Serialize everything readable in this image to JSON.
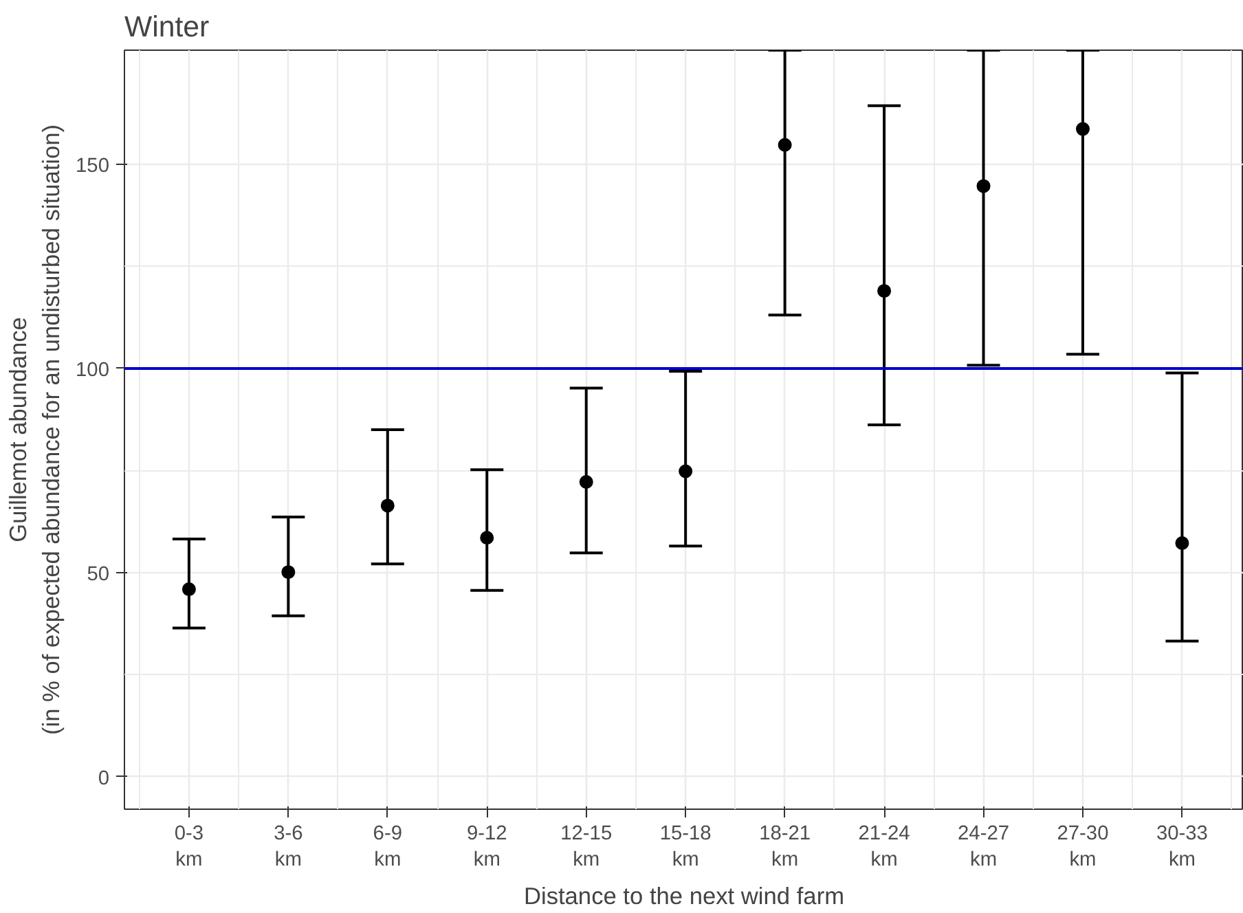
{
  "chart_data": {
    "type": "scatter",
    "title": "Winter",
    "xlabel": "Distance to the next wind farm",
    "ylabel": "Guillemot abundance\n(in % of expected abundance for an undisturbed situation)",
    "categories": [
      "0-3 km",
      "3-6 km",
      "6-9 km",
      "9-12 km",
      "12-15 km",
      "15-18 km",
      "18-21 km",
      "21-24 km",
      "24-27 km",
      "27-30 km",
      "30-33 km"
    ],
    "series": [
      {
        "color": "#000000",
        "values": [
          45.9,
          50.1,
          66.4,
          58.5,
          72.2,
          74.8,
          154.8,
          119.0,
          144.7,
          158.7,
          57.2
        ],
        "errors": [
          [
            36.4,
            58.2
          ],
          [
            39.4,
            63.6
          ],
          [
            52.1,
            85.0
          ],
          [
            45.6,
            75.2
          ],
          [
            54.8,
            95.2
          ],
          [
            56.5,
            99.3
          ],
          [
            113.1,
            178
          ],
          [
            86.2,
            164.4
          ],
          [
            100.8,
            178
          ],
          [
            103.5,
            178
          ],
          [
            33.2,
            98.9
          ]
        ]
      }
    ],
    "ylim": [
      -8,
      178
    ],
    "yticks": [
      0,
      50,
      100,
      150
    ],
    "ref_lines": [
      {
        "axis": "y",
        "value": 100,
        "color": "#0000cc"
      }
    ],
    "grid": true,
    "marker": "circle"
  }
}
